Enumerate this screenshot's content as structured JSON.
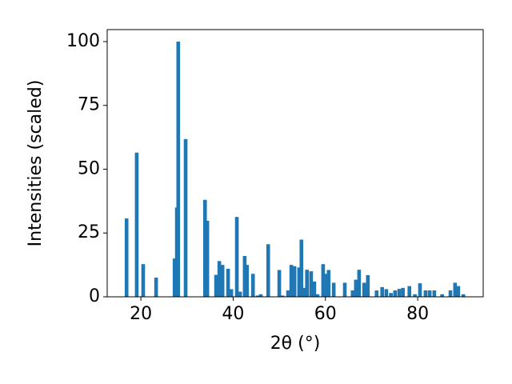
{
  "chart_data": {
    "type": "bar",
    "xlabel": "2θ (°)",
    "ylabel": "Intensities (scaled)",
    "x": [
      16.9,
      19.1,
      20.5,
      23.3,
      27.3,
      27.8,
      28.1,
      29.7,
      33.9,
      34.4,
      36.3,
      37.0,
      37.7,
      38.9,
      39.6,
      40.8,
      41.5,
      42.5,
      43.0,
      44.3,
      45.3,
      46.0,
      47.6,
      50.0,
      50.7,
      51.9,
      52.6,
      53.3,
      54.3,
      54.8,
      55.4,
      56.0,
      56.9,
      57.6,
      58.3,
      59.5,
      60.0,
      60.7,
      61.8,
      64.2,
      65.9,
      66.6,
      67.3,
      68.4,
      69.2,
      71.1,
      72.3,
      73.2,
      74.2,
      75.1,
      76.0,
      76.8,
      78.2,
      79.4,
      80.5,
      81.7,
      82.6,
      83.6,
      85.3,
      87.1,
      88.1,
      88.8,
      89.9
    ],
    "values": [
      30.7,
      56.5,
      12.8,
      7.5,
      15,
      35,
      100,
      61.8,
      38,
      29.8,
      8.6,
      14,
      12.5,
      11,
      3,
      31.3,
      2,
      16,
      12.5,
      9,
      0.5,
      1,
      20.6,
      10.5,
      0.5,
      2.5,
      12.5,
      12,
      11.5,
      22.4,
      3.5,
      10.6,
      10,
      6,
      1,
      12.8,
      9,
      10.5,
      5.5,
      5.5,
      2.5,
      6.7,
      10.6,
      5.5,
      8.5,
      2.5,
      3.8,
      3,
      1.5,
      2.5,
      3.1,
      3.5,
      4.2,
      1,
      5.3,
      2.5,
      2.5,
      2.5,
      1,
      2.5,
      5.5,
      4.2,
      1
    ],
    "bar_width": 0.8,
    "color": "#1f77b4",
    "xlim": [
      12.7,
      94.2
    ],
    "ylim": [
      0,
      104.7
    ],
    "xticks": [
      20,
      40,
      60,
      80
    ],
    "yticks": [
      0,
      25,
      50,
      75,
      100
    ]
  }
}
